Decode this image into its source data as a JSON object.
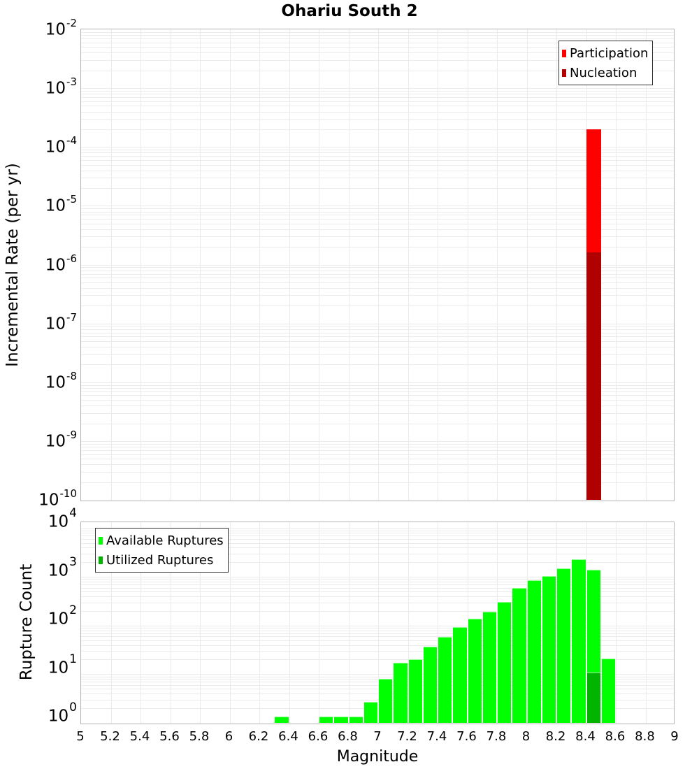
{
  "title": "Ohariu South 2",
  "top_chart": {
    "ylabel": "Incremental Rate (per yr)",
    "ytick_exponents": [
      "-2",
      "-3",
      "-4",
      "-5",
      "-6",
      "-7",
      "-8",
      "-9",
      "-10"
    ],
    "legend": [
      {
        "label": "Participation",
        "color": "#ff0000"
      },
      {
        "label": "Nucleation",
        "color": "#b00000"
      }
    ]
  },
  "bottom_chart": {
    "ylabel": "Rupture Count",
    "ytick_exponents": [
      "4",
      "3",
      "2",
      "1",
      "0"
    ],
    "legend": [
      {
        "label": "Available Ruptures",
        "color": "#00ff00"
      },
      {
        "label": "Utilized Ruptures",
        "color": "#00b400"
      }
    ]
  },
  "xaxis": {
    "label": "Magnitude",
    "ticks": [
      "5",
      "5.2",
      "5.4",
      "5.6",
      "5.8",
      "6",
      "6.2",
      "6.4",
      "6.6",
      "6.8",
      "7",
      "7.2",
      "7.4",
      "7.6",
      "7.8",
      "8",
      "8.2",
      "8.4",
      "8.6",
      "8.8",
      "9"
    ]
  },
  "chart_data": [
    {
      "type": "bar",
      "title": "Ohariu South 2",
      "xlabel": "Magnitude",
      "ylabel": "Incremental Rate (per yr)",
      "yscale": "log",
      "ylim": [
        1e-10,
        0.01
      ],
      "xlim": [
        5,
        9
      ],
      "grid": true,
      "legend_position": "top-right",
      "series": [
        {
          "name": "Participation",
          "color": "#ff0000",
          "x": [
            8.45
          ],
          "values": [
            0.0002
          ]
        },
        {
          "name": "Nucleation",
          "color": "#b00000",
          "x": [
            8.45
          ],
          "values": [
            1.6e-06
          ]
        }
      ]
    },
    {
      "type": "bar",
      "xlabel": "Magnitude",
      "ylabel": "Rupture Count",
      "yscale": "log",
      "ylim": [
        0.75,
        10000
      ],
      "xlim": [
        5,
        9
      ],
      "grid": true,
      "legend_position": "top-left",
      "x": [
        6.35,
        6.65,
        6.75,
        6.85,
        6.95,
        7.05,
        7.15,
        7.25,
        7.35,
        7.45,
        7.55,
        7.65,
        7.75,
        7.85,
        7.95,
        8.05,
        8.15,
        8.25,
        8.35,
        8.45,
        8.55
      ],
      "series": [
        {
          "name": "Available Ruptures",
          "color": "#00ff00",
          "values": [
            1,
            1,
            1,
            1,
            2,
            6,
            13,
            15,
            28,
            44,
            70,
            103,
            143,
            228,
            440,
            650,
            790,
            1140,
            1750,
            1040,
            16
          ]
        },
        {
          "name": "Utilized Ruptures",
          "color": "#00b400",
          "values": [
            0,
            0,
            0,
            0,
            0,
            0,
            0,
            0,
            0,
            0,
            0,
            0,
            0,
            0,
            0,
            0,
            0,
            0,
            0,
            8,
            0
          ]
        }
      ]
    }
  ]
}
